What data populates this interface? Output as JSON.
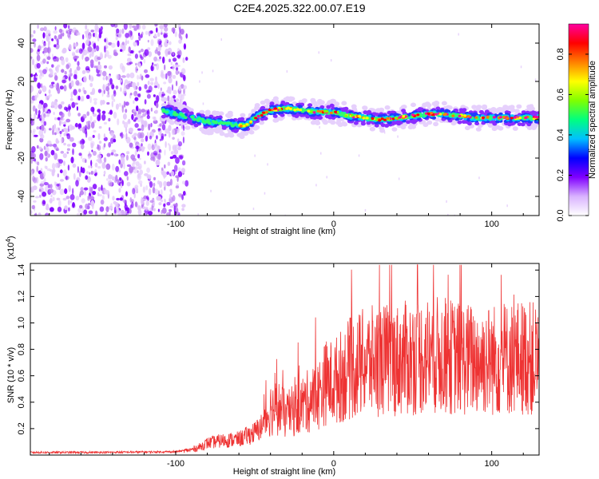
{
  "title": "C2E4.2025.322.00.07.E19",
  "chart_data": [
    {
      "type": "heatmap",
      "name": "spectrogram",
      "xlabel": "Height of straight line (km)",
      "ylabel": "Frequency (Hz)",
      "xlim": [
        -192,
        130
      ],
      "ylim": [
        -50,
        50
      ],
      "xticks": [
        -100,
        0,
        100
      ],
      "xtick_labels": [
        "-100",
        "0",
        "100"
      ],
      "yticks": [
        -40,
        -20,
        0,
        20,
        40
      ],
      "ytick_labels": [
        "-40",
        "-20",
        "0",
        "20",
        "40"
      ],
      "noise_region_x": [
        -192,
        -93
      ],
      "signal_start_x": -108,
      "signal_track": {
        "x": [
          -108,
          -100,
          -90,
          -80,
          -70,
          -60,
          -55,
          -50,
          -40,
          -30,
          -20,
          -10,
          0,
          10,
          20,
          30,
          40,
          50,
          60,
          70,
          80,
          90,
          100,
          110,
          120,
          130
        ],
        "frequency": [
          5,
          3,
          1,
          -1,
          -2,
          -3,
          -3,
          1,
          5,
          6,
          5,
          4,
          4,
          2,
          1,
          0,
          1,
          2,
          3,
          3,
          2,
          1,
          1,
          1,
          1,
          1
        ]
      },
      "colorbar": {
        "label": "Normalized spectral amplitude",
        "range": [
          0,
          0.95
        ],
        "ticks": [
          0.0,
          0.2,
          0.4,
          0.6,
          0.8
        ],
        "tick_labels": [
          "0.0",
          "0.2",
          "0.4",
          "0.6",
          "0.8"
        ],
        "colors": [
          "#ffffff",
          "#d9b3ff",
          "#8000ff",
          "#0000ff",
          "#00c0ff",
          "#00ff80",
          "#80ff00",
          "#ffff00",
          "#ff8000",
          "#ff0000",
          "#ff00a0"
        ]
      }
    },
    {
      "type": "line",
      "name": "snr",
      "xlabel": "Height of straight line (km)",
      "ylabel": "SNR (10 * v/v)",
      "y_multiplier_label": "(x10",
      "y_multiplier_exp": "4",
      "y_multiplier_close": ")",
      "xlim": [
        -192,
        130
      ],
      "ylim": [
        0,
        1.45
      ],
      "xticks": [
        -100,
        0,
        100
      ],
      "xtick_labels": [
        "-100",
        "0",
        "100"
      ],
      "yticks": [
        0.2,
        0.4,
        0.6,
        0.8,
        1.0,
        1.2,
        1.4
      ],
      "ytick_labels": [
        "0.2",
        "0.4",
        "0.6",
        "0.8",
        "1.0",
        "1.2",
        "1.4"
      ],
      "color": "#ee3333",
      "envelope": {
        "x": [
          -192,
          -150,
          -100,
          -90,
          -85,
          -80,
          -70,
          -60,
          -50,
          -45,
          -40,
          -35,
          -30,
          -20,
          -10,
          -5,
          0,
          5,
          10,
          20,
          30,
          40,
          50,
          60,
          70,
          80,
          90,
          100,
          110,
          120,
          130
        ],
        "y": [
          0.02,
          0.02,
          0.025,
          0.04,
          0.06,
          0.09,
          0.11,
          0.12,
          0.17,
          0.22,
          0.35,
          0.36,
          0.3,
          0.38,
          0.45,
          0.55,
          0.55,
          0.6,
          0.65,
          0.7,
          0.72,
          0.72,
          0.74,
          0.76,
          0.75,
          0.73,
          0.72,
          0.72,
          0.73,
          0.74,
          0.72
        ]
      }
    }
  ]
}
